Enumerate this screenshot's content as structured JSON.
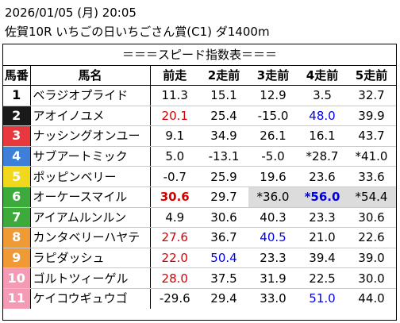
{
  "header": {
    "datetime": "2026/01/05 (月) 20:05",
    "race": "佐賀10R いちごの日いちごさん賞(C1) ダ1400m"
  },
  "table": {
    "title": "＝＝＝スピード指数表＝＝＝",
    "columns": [
      "馬番",
      "馬名",
      "前走",
      "2走前",
      "3走前",
      "4走前",
      "5走前"
    ],
    "rows": [
      {
        "num": "1",
        "name": "ベラジオプライド",
        "bg": "#ffffff",
        "fg": "#000000",
        "cells": [
          {
            "v": "11.3"
          },
          {
            "v": "15.1"
          },
          {
            "v": "12.9"
          },
          {
            "v": "3.5"
          },
          {
            "v": "32.7"
          }
        ]
      },
      {
        "num": "2",
        "name": "アオイノユメ",
        "bg": "#1a1a1a",
        "fg": "#ffffff",
        "cells": [
          {
            "v": "20.1",
            "c": "red"
          },
          {
            "v": "25.4"
          },
          {
            "v": "-15.0"
          },
          {
            "v": "48.0",
            "c": "blue"
          },
          {
            "v": "39.9"
          }
        ]
      },
      {
        "num": "3",
        "name": "ナッシングオンユー",
        "bg": "#e8383d",
        "fg": "#ffffff",
        "cells": [
          {
            "v": "9.1"
          },
          {
            "v": "34.9"
          },
          {
            "v": "26.1"
          },
          {
            "v": "16.1"
          },
          {
            "v": "43.7"
          }
        ]
      },
      {
        "num": "4",
        "name": "サブアートミック",
        "bg": "#3d7fd9",
        "fg": "#ffffff",
        "cells": [
          {
            "v": "5.0"
          },
          {
            "v": "-13.1"
          },
          {
            "v": "-5.0"
          },
          {
            "v": "*28.7"
          },
          {
            "v": "*41.0"
          }
        ]
      },
      {
        "num": "5",
        "name": "ポッピンベリー",
        "bg": "#f2d81c",
        "fg": "#ffffff",
        "cells": [
          {
            "v": "-0.7"
          },
          {
            "v": "25.9"
          },
          {
            "v": "19.6"
          },
          {
            "v": "23.6"
          },
          {
            "v": "33.6"
          }
        ]
      },
      {
        "num": "6",
        "name": "オーケースマイル",
        "bg": "#3cab3c",
        "fg": "#ffffff",
        "cells": [
          {
            "v": "30.6",
            "c": "red",
            "b": true
          },
          {
            "v": "29.7"
          },
          {
            "v": "*36.0",
            "h": true
          },
          {
            "v": "*56.0",
            "c": "blue",
            "b": true,
            "h": true
          },
          {
            "v": "*54.4",
            "h": true
          }
        ]
      },
      {
        "num": "7",
        "name": "アイアムルンルン",
        "bg": "#3cab3c",
        "fg": "#ffffff",
        "cells": [
          {
            "v": "4.9"
          },
          {
            "v": "30.6"
          },
          {
            "v": "40.3"
          },
          {
            "v": "23.3"
          },
          {
            "v": "30.6"
          }
        ]
      },
      {
        "num": "8",
        "name": "カンタベリーハヤテ",
        "bg": "#f09a35",
        "fg": "#ffffff",
        "cells": [
          {
            "v": "27.6",
            "c": "red"
          },
          {
            "v": "36.7"
          },
          {
            "v": "40.5",
            "c": "blue"
          },
          {
            "v": "21.0"
          },
          {
            "v": "22.6"
          }
        ]
      },
      {
        "num": "9",
        "name": "ラピダッシュ",
        "bg": "#f09a35",
        "fg": "#ffffff",
        "cells": [
          {
            "v": "22.0",
            "c": "red"
          },
          {
            "v": "50.4",
            "c": "blue"
          },
          {
            "v": "23.3"
          },
          {
            "v": "39.4"
          },
          {
            "v": "39.0"
          }
        ]
      },
      {
        "num": "10",
        "name": "ゴルトツィーゲル",
        "bg": "#f49ab4",
        "fg": "#ffffff",
        "cells": [
          {
            "v": "28.0",
            "c": "red"
          },
          {
            "v": "37.5"
          },
          {
            "v": "31.9"
          },
          {
            "v": "22.5"
          },
          {
            "v": "30.0"
          }
        ]
      },
      {
        "num": "11",
        "name": "ケイコウギュウゴ",
        "bg": "#f49ab4",
        "fg": "#ffffff",
        "cells": [
          {
            "v": "-29.6"
          },
          {
            "v": "29.4"
          },
          {
            "v": "33.0"
          },
          {
            "v": "51.0",
            "c": "blue"
          },
          {
            "v": "44.0"
          }
        ]
      }
    ]
  }
}
